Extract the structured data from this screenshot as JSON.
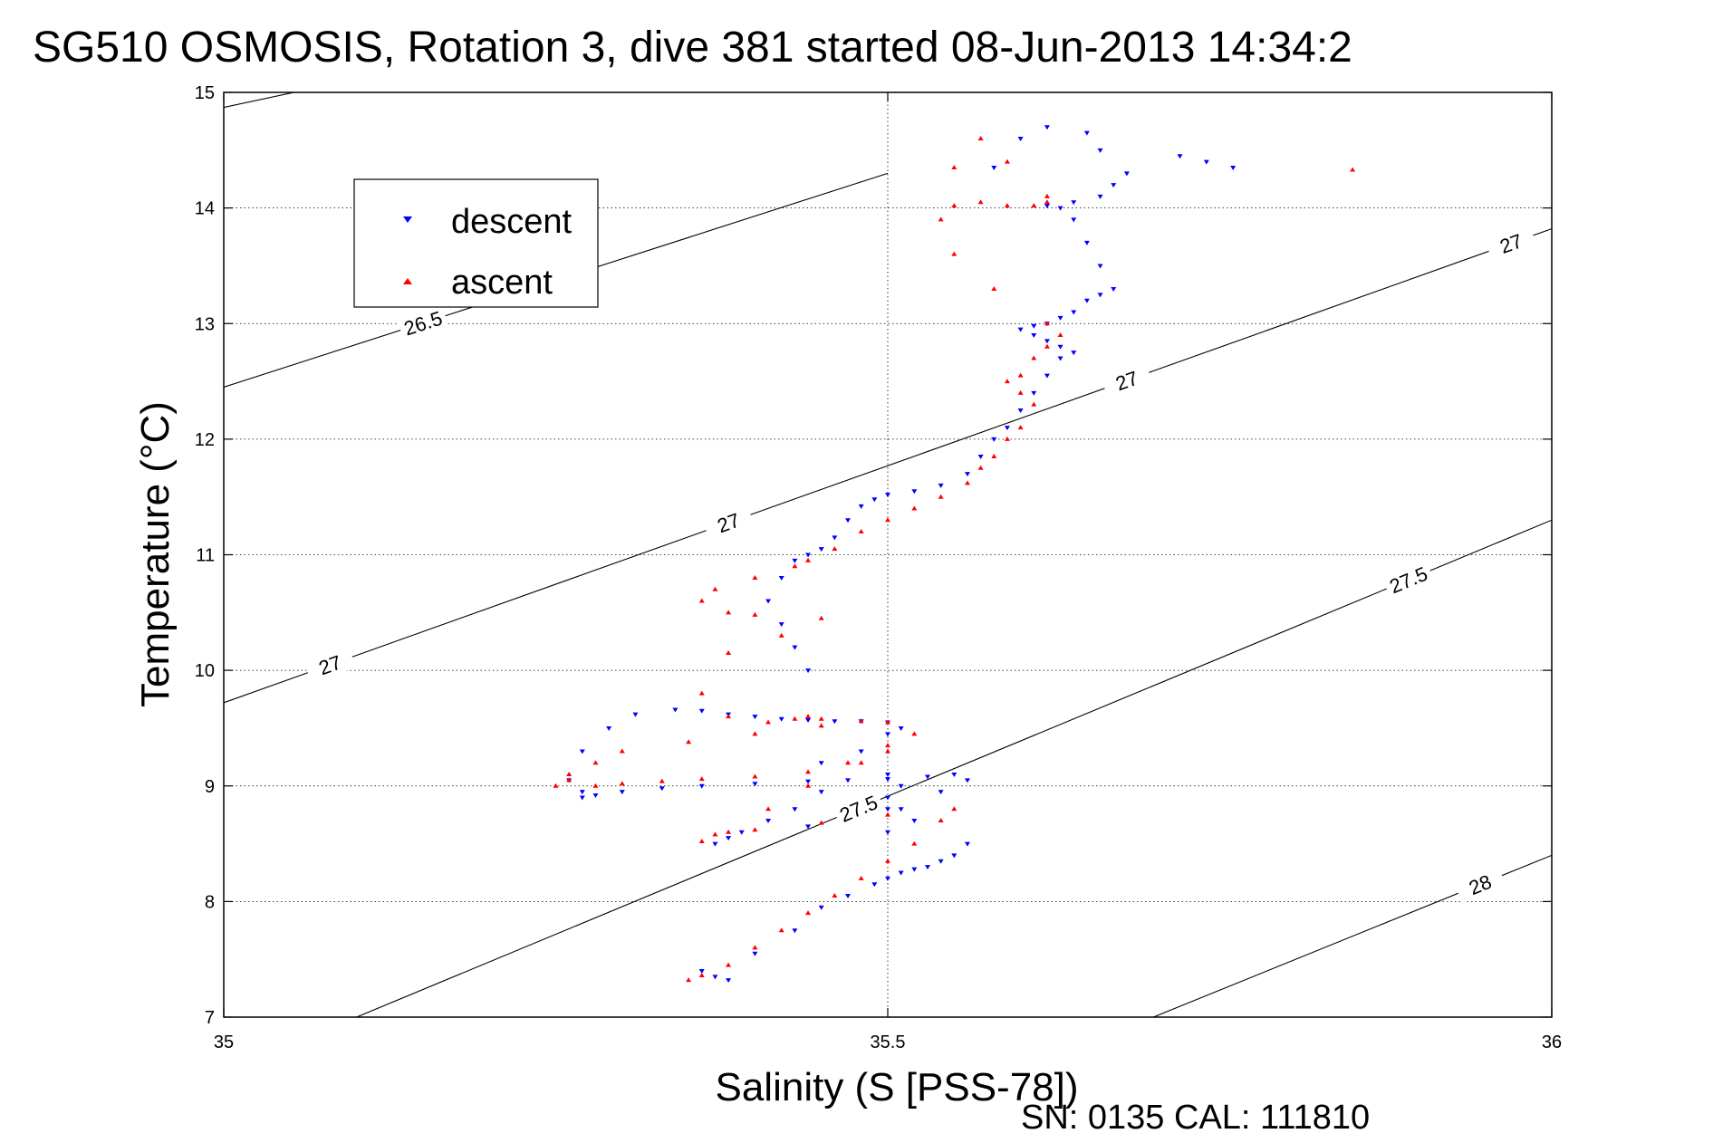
{
  "colors": {
    "descent": "#0000ff",
    "ascent": "#ff0000",
    "axes": "#000000",
    "grid": "#000000",
    "background": "#ffffff"
  },
  "footer": {
    "text": "SN: 0135  CAL: 111810"
  },
  "chart_data": {
    "type": "scatter",
    "title": "SG510 OSMOSIS, Rotation 3, dive 381 started 08-Jun-2013 14:34:2",
    "xlabel": "Salinity (S [PSS-78])",
    "ylabel": "Temperature (°C)",
    "xlim": [
      35,
      36
    ],
    "ylim": [
      7,
      15
    ],
    "xticks": [
      35,
      35.5,
      36
    ],
    "xtick_labels": [
      "35",
      "35.5",
      "36"
    ],
    "yticks": [
      7,
      8,
      9,
      10,
      11,
      12,
      13,
      14,
      15
    ],
    "ytick_labels": [
      "7",
      "8",
      "9",
      "10",
      "11",
      "12",
      "13",
      "14",
      "15"
    ],
    "grid": true,
    "legend": {
      "placement": "top-left",
      "entries": [
        "descent",
        "ascent"
      ]
    },
    "series": [
      {
        "name": "descent",
        "marker": "triangle-down",
        "x": [
          35.38,
          35.37,
          35.36,
          35.4,
          35.43,
          35.45,
          35.47,
          35.49,
          35.5,
          35.51,
          35.52,
          35.53,
          35.54,
          35.55,
          35.56,
          35.5,
          35.52,
          35.51,
          35.5,
          35.51,
          35.5,
          35.45,
          35.43,
          35.41,
          35.39,
          35.38,
          35.37,
          35.44,
          35.5,
          35.54,
          35.56,
          35.55,
          35.53,
          35.5,
          35.47,
          35.44,
          35.4,
          35.36,
          35.33,
          35.3,
          35.28,
          35.27,
          35.27,
          35.26,
          35.27,
          35.29,
          35.31,
          35.34,
          35.36,
          35.38,
          35.4,
          35.42,
          35.44,
          35.46,
          35.48,
          35.5,
          35.51,
          35.5,
          35.48,
          35.45,
          35.44,
          35.43,
          35.42,
          35.41,
          35.42,
          35.43,
          35.44,
          35.45,
          35.46,
          35.47,
          35.48,
          35.49,
          35.5,
          35.52,
          35.54,
          35.56,
          35.57,
          35.58,
          35.59,
          35.6,
          35.61,
          35.62,
          35.63,
          35.64,
          35.63,
          35.62,
          35.61,
          35.6,
          35.61,
          35.62,
          35.63,
          35.64,
          35.65,
          35.66,
          35.67,
          35.66,
          35.65,
          35.64,
          35.63,
          35.62,
          35.64,
          35.66,
          35.67,
          35.68,
          35.66,
          35.58,
          35.6,
          35.62,
          35.65,
          35.72,
          35.74,
          35.76
        ],
        "y": [
          7.32,
          7.35,
          7.4,
          7.55,
          7.75,
          7.95,
          8.05,
          8.15,
          8.2,
          8.25,
          8.28,
          8.3,
          8.35,
          8.4,
          8.5,
          8.6,
          8.7,
          8.8,
          8.9,
          9.0,
          9.1,
          8.95,
          8.8,
          8.7,
          8.6,
          8.55,
          8.5,
          8.65,
          8.8,
          8.95,
          9.05,
          9.1,
          9.08,
          9.06,
          9.05,
          9.04,
          9.02,
          9.0,
          8.98,
          8.95,
          8.92,
          8.9,
          8.95,
          9.05,
          9.3,
          9.5,
          9.62,
          9.66,
          9.65,
          9.62,
          9.6,
          9.58,
          9.57,
          9.56,
          9.56,
          9.55,
          9.5,
          9.45,
          9.3,
          9.2,
          10.0,
          10.2,
          10.4,
          10.6,
          10.8,
          10.95,
          11.0,
          11.05,
          11.15,
          11.3,
          11.42,
          11.48,
          11.52,
          11.55,
          11.6,
          11.7,
          11.85,
          12.0,
          12.1,
          12.25,
          12.4,
          12.55,
          12.7,
          12.75,
          12.8,
          12.85,
          12.9,
          12.95,
          12.98,
          13.0,
          13.05,
          13.1,
          13.2,
          13.25,
          13.3,
          13.5,
          13.7,
          13.9,
          14.0,
          14.02,
          14.05,
          14.1,
          14.2,
          14.3,
          14.5,
          14.35,
          14.6,
          14.7,
          14.65,
          14.45,
          14.4,
          14.35
        ]
      },
      {
        "name": "ascent",
        "marker": "triangle-up",
        "x": [
          35.35,
          35.36,
          35.38,
          35.4,
          35.42,
          35.44,
          35.46,
          35.48,
          35.5,
          35.52,
          35.54,
          35.55,
          35.5,
          35.45,
          35.4,
          35.37,
          35.36,
          35.38,
          35.41,
          35.44,
          35.47,
          35.5,
          35.52,
          35.5,
          35.45,
          35.4,
          35.35,
          35.3,
          35.28,
          35.26,
          35.25,
          35.26,
          35.28,
          35.3,
          35.33,
          35.36,
          35.4,
          35.44,
          35.48,
          35.5,
          35.48,
          35.45,
          35.44,
          35.43,
          35.41,
          35.38,
          35.36,
          35.38,
          35.42,
          35.45,
          35.4,
          35.38,
          35.36,
          35.37,
          35.4,
          35.43,
          35.44,
          35.46,
          35.48,
          35.5,
          35.52,
          35.54,
          35.56,
          35.57,
          35.58,
          35.59,
          35.6,
          35.61,
          35.6,
          35.59,
          35.6,
          35.61,
          35.62,
          35.63,
          35.62,
          35.58,
          35.55,
          35.54,
          35.55,
          35.57,
          35.59,
          35.61,
          35.62,
          35.62,
          35.55,
          35.57,
          35.59,
          35.85
        ],
        "y": [
          7.32,
          7.36,
          7.45,
          7.6,
          7.75,
          7.9,
          8.05,
          8.2,
          8.35,
          8.5,
          8.7,
          8.8,
          8.75,
          8.68,
          8.62,
          8.58,
          8.52,
          8.6,
          8.8,
          9.0,
          9.2,
          9.35,
          9.45,
          9.55,
          9.52,
          9.45,
          9.38,
          9.3,
          9.2,
          9.1,
          9.0,
          9.05,
          9.0,
          9.02,
          9.04,
          9.06,
          9.08,
          9.12,
          9.2,
          9.3,
          9.56,
          9.58,
          9.6,
          9.58,
          9.55,
          9.6,
          9.8,
          10.15,
          10.3,
          10.45,
          10.48,
          10.5,
          10.6,
          10.7,
          10.8,
          10.9,
          10.95,
          11.05,
          11.2,
          11.3,
          11.4,
          11.5,
          11.62,
          11.75,
          11.85,
          12.0,
          12.1,
          12.3,
          12.4,
          12.5,
          12.55,
          12.7,
          12.8,
          12.9,
          13.0,
          13.3,
          13.6,
          13.9,
          14.02,
          14.05,
          14.02,
          14.02,
          14.05,
          14.1,
          14.35,
          14.6,
          14.4,
          14.33
        ]
      }
    ],
    "contours": [
      {
        "label": "26.5",
        "x": [
          35,
          35.68
        ],
        "y": [
          14.87,
          16.54
        ]
      },
      {
        "label": "26.5",
        "x": [
          35,
          35.5
        ],
        "y": [
          12.45,
          14.3
        ]
      },
      {
        "label": "27",
        "x": [
          35,
          36
        ],
        "y": [
          9.72,
          13.82
        ]
      },
      {
        "label": "27.5",
        "x": [
          35.1,
          36
        ],
        "y": [
          7.0,
          11.3
        ]
      },
      {
        "label": "28",
        "x": [
          35.7,
          36
        ],
        "y": [
          7.0,
          8.4
        ]
      }
    ]
  }
}
